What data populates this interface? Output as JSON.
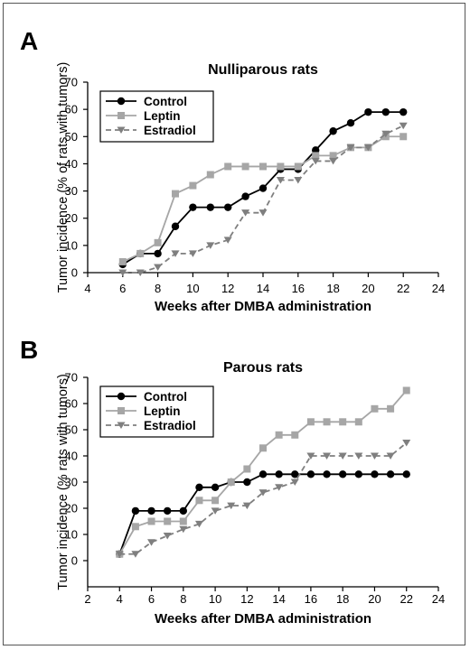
{
  "chart_data": [
    {
      "panel": "A",
      "type": "line",
      "title": "Nulliparous rats",
      "xlabel": "Weeks after DMBA administration",
      "ylabel": "Tumor incidence (% of rats with tumors)",
      "xlim": [
        4,
        24
      ],
      "ylim": [
        0,
        70
      ],
      "xticks": [
        4,
        6,
        8,
        10,
        12,
        14,
        16,
        18,
        20,
        22,
        24
      ],
      "yticks": [
        0,
        10,
        20,
        30,
        40,
        50,
        60,
        70
      ],
      "legend_position": "top-left",
      "series": [
        {
          "name": "Control",
          "color": "#000000",
          "marker": "circle",
          "dash": "solid",
          "x": [
            6,
            7,
            8,
            9,
            10,
            11,
            12,
            13,
            14,
            15,
            16,
            17,
            18,
            19,
            20,
            21,
            22
          ],
          "y": [
            3,
            7,
            7,
            17,
            24,
            24,
            24,
            28,
            31,
            38,
            38,
            45,
            52,
            55,
            59,
            59,
            59
          ]
        },
        {
          "name": "Leptin",
          "color": "#a6a6a6",
          "marker": "square",
          "dash": "solid",
          "x": [
            6,
            7,
            8,
            9,
            10,
            11,
            12,
            13,
            14,
            15,
            16,
            17,
            18,
            19,
            20,
            21,
            22
          ],
          "y": [
            4,
            7,
            11,
            29,
            32,
            36,
            39,
            39,
            39,
            39,
            39,
            43,
            43,
            46,
            46,
            50,
            50
          ]
        },
        {
          "name": "Estradiol",
          "color": "#7f7f7f",
          "marker": "triangle-down",
          "dash": "dashed",
          "x": [
            6,
            7,
            8,
            9,
            10,
            11,
            12,
            13,
            14,
            15,
            16,
            17,
            18,
            19,
            20,
            21,
            22
          ],
          "y": [
            0,
            0,
            2,
            7,
            7,
            10,
            12,
            22,
            22,
            34,
            34,
            41,
            41,
            46,
            46,
            51,
            54
          ]
        }
      ]
    },
    {
      "panel": "B",
      "type": "line",
      "title": "Parous rats",
      "xlabel": "Weeks after DMBA administration",
      "ylabel": "Tumor incidence (% rats with tumors)",
      "xlim": [
        2,
        24
      ],
      "ylim": [
        -10,
        70
      ],
      "xticks": [
        2,
        4,
        6,
        8,
        10,
        12,
        14,
        16,
        18,
        20,
        22,
        24
      ],
      "yticks": [
        0,
        10,
        20,
        30,
        40,
        50,
        60,
        70
      ],
      "legend_position": "top-left",
      "series": [
        {
          "name": "Control",
          "color": "#000000",
          "marker": "circle",
          "dash": "solid",
          "x": [
            4,
            5,
            6,
            7,
            8,
            9,
            10,
            11,
            12,
            13,
            14,
            15,
            16,
            17,
            18,
            19,
            20,
            21,
            22
          ],
          "y": [
            2.5,
            19,
            19,
            19,
            19,
            28,
            28,
            30,
            30,
            33,
            33,
            33,
            33,
            33,
            33,
            33,
            33,
            33,
            33
          ]
        },
        {
          "name": "Leptin",
          "color": "#a6a6a6",
          "marker": "square",
          "dash": "solid",
          "x": [
            4,
            5,
            6,
            7,
            8,
            9,
            10,
            11,
            12,
            13,
            14,
            15,
            16,
            17,
            18,
            19,
            20,
            21,
            22
          ],
          "y": [
            2.5,
            13,
            15,
            15,
            15,
            23,
            23,
            30,
            35,
            43,
            48,
            48,
            53,
            53,
            53,
            53,
            58,
            58,
            65
          ]
        },
        {
          "name": "Estradiol",
          "color": "#7f7f7f",
          "marker": "triangle-down",
          "dash": "dashed",
          "x": [
            4,
            5,
            6,
            7,
            8,
            9,
            10,
            11,
            12,
            13,
            14,
            15,
            16,
            17,
            18,
            19,
            20,
            21,
            22
          ],
          "y": [
            2.5,
            2.5,
            7,
            9.5,
            12,
            14,
            19,
            21,
            21,
            26,
            28,
            30,
            40,
            40,
            40,
            40,
            40,
            40,
            45
          ]
        }
      ]
    }
  ]
}
